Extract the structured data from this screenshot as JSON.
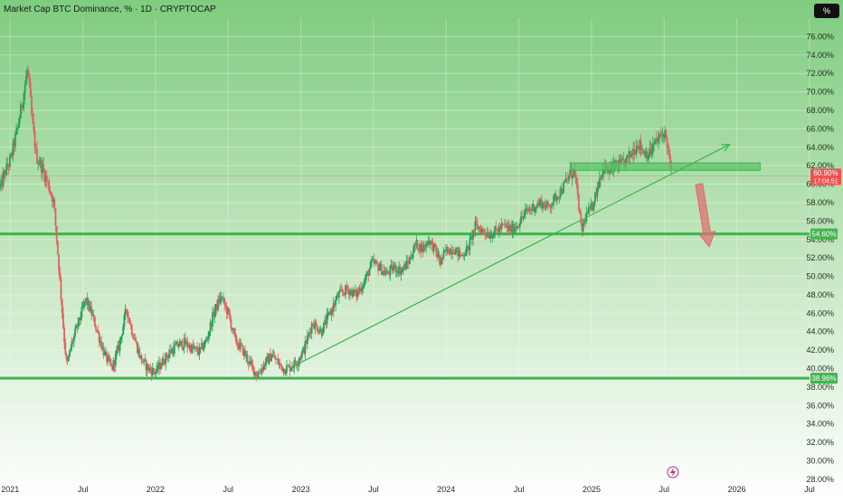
{
  "header": {
    "title": "Market Cap BTC Dominance, % · 1D · CRYPTOCAP",
    "scale_label": "%"
  },
  "icons": {
    "event": "lightning-icon"
  },
  "colors": {
    "bullish": "#22a05a",
    "bearish": "#e06060",
    "level": "#3fb34f",
    "zone": "#5ec26a",
    "arrow": "#e07070",
    "current_label": "#f05050",
    "level_label": "#43b54f"
  },
  "current_price": {
    "value": 60.9,
    "label": "60.90%",
    "countdown": "17:04:51"
  },
  "chart_data": {
    "type": "candlestick",
    "title": "Market Cap BTC Dominance, % · 1D · CRYPTOCAP",
    "yunit": "%",
    "ylim": [
      27.5,
      78.0
    ],
    "xlim": [
      2020.93,
      2026.5
    ],
    "x_ticks": [
      {
        "label": "2021",
        "x": 2021.0
      },
      {
        "label": "Jul",
        "x": 2021.5
      },
      {
        "label": "2022",
        "x": 2022.0
      },
      {
        "label": "Jul",
        "x": 2022.5
      },
      {
        "label": "2023",
        "x": 2023.0
      },
      {
        "label": "Jul",
        "x": 2023.5
      },
      {
        "label": "2024",
        "x": 2024.0
      },
      {
        "label": "Jul",
        "x": 2024.5
      },
      {
        "label": "2025",
        "x": 2025.0
      },
      {
        "label": "Jul",
        "x": 2025.5
      },
      {
        "label": "2026",
        "x": 2026.0
      },
      {
        "label": "Jul",
        "x": 2026.5
      }
    ],
    "y_ticks": [
      28,
      30,
      32,
      34,
      36,
      38,
      40,
      42,
      44,
      46,
      48,
      50,
      52,
      54,
      56,
      58,
      60,
      62,
      64,
      66,
      68,
      70,
      72,
      74,
      76
    ],
    "y_tick_labels": [
      "28.00%",
      "30.00%",
      "32.00%",
      "34.00%",
      "36.00%",
      "38.00%",
      "40.00%",
      "42.00%",
      "44.00%",
      "46.00%",
      "48.00%",
      "50.00%",
      "52.00%",
      "54.00%",
      "56.00%",
      "58.00%",
      "60.00%",
      "62.00%",
      "64.00%",
      "66.00%",
      "68.00%",
      "70.00%",
      "72.00%",
      "74.00%",
      "76.00%"
    ],
    "price_path": [
      [
        2020.93,
        59.6
      ],
      [
        2020.97,
        61.5
      ],
      [
        2021.0,
        62.5
      ],
      [
        2021.05,
        66.0
      ],
      [
        2021.09,
        69.5
      ],
      [
        2021.12,
        72.6
      ],
      [
        2021.15,
        67.0
      ],
      [
        2021.18,
        63.0
      ],
      [
        2021.22,
        61.8
      ],
      [
        2021.26,
        60.0
      ],
      [
        2021.3,
        58.0
      ],
      [
        2021.34,
        50.0
      ],
      [
        2021.37,
        43.5
      ],
      [
        2021.39,
        40.2
      ],
      [
        2021.42,
        42.5
      ],
      [
        2021.47,
        45.0
      ],
      [
        2021.52,
        47.5
      ],
      [
        2021.56,
        46.0
      ],
      [
        2021.61,
        43.5
      ],
      [
        2021.65,
        41.5
      ],
      [
        2021.7,
        40.0
      ],
      [
        2021.75,
        42.5
      ],
      [
        2021.8,
        46.5
      ],
      [
        2021.84,
        44.0
      ],
      [
        2021.9,
        41.0
      ],
      [
        2021.95,
        40.0
      ],
      [
        2022.0,
        39.6
      ],
      [
        2022.05,
        40.8
      ],
      [
        2022.1,
        41.8
      ],
      [
        2022.15,
        42.5
      ],
      [
        2022.2,
        42.8
      ],
      [
        2022.25,
        42.2
      ],
      [
        2022.3,
        41.8
      ],
      [
        2022.35,
        43.0
      ],
      [
        2022.4,
        46.0
      ],
      [
        2022.45,
        47.8
      ],
      [
        2022.5,
        46.0
      ],
      [
        2022.55,
        43.0
      ],
      [
        2022.6,
        42.0
      ],
      [
        2022.65,
        40.5
      ],
      [
        2022.7,
        39.3
      ],
      [
        2022.75,
        40.5
      ],
      [
        2022.8,
        41.5
      ],
      [
        2022.85,
        40.5
      ],
      [
        2022.88,
        40.0
      ],
      [
        2022.92,
        40.1
      ],
      [
        2022.97,
        40.7
      ],
      [
        2023.02,
        42.0
      ],
      [
        2023.08,
        45.0
      ],
      [
        2023.14,
        44.0
      ],
      [
        2023.2,
        46.0
      ],
      [
        2023.26,
        48.0
      ],
      [
        2023.32,
        48.6
      ],
      [
        2023.38,
        48.0
      ],
      [
        2023.44,
        49.5
      ],
      [
        2023.49,
        51.5
      ],
      [
        2023.54,
        51.0
      ],
      [
        2023.59,
        50.2
      ],
      [
        2023.64,
        51.0
      ],
      [
        2023.69,
        50.6
      ],
      [
        2023.74,
        51.5
      ],
      [
        2023.79,
        53.5
      ],
      [
        2023.84,
        53.0
      ],
      [
        2023.88,
        54.0
      ],
      [
        2023.92,
        53.0
      ],
      [
        2023.96,
        51.5
      ],
      [
        2024.0,
        52.8
      ],
      [
        2024.05,
        53.0
      ],
      [
        2024.1,
        52.2
      ],
      [
        2024.15,
        53.0
      ],
      [
        2024.2,
        55.5
      ],
      [
        2024.25,
        55.0
      ],
      [
        2024.3,
        54.5
      ],
      [
        2024.35,
        55.0
      ],
      [
        2024.4,
        55.5
      ],
      [
        2024.45,
        55.0
      ],
      [
        2024.5,
        55.8
      ],
      [
        2024.55,
        57.0
      ],
      [
        2024.6,
        57.5
      ],
      [
        2024.65,
        58.0
      ],
      [
        2024.7,
        57.5
      ],
      [
        2024.75,
        58.5
      ],
      [
        2024.8,
        59.5
      ],
      [
        2024.85,
        61.0
      ],
      [
        2024.88,
        61.5
      ],
      [
        2024.91,
        58.0
      ],
      [
        2024.93,
        54.8
      ],
      [
        2024.96,
        56.5
      ],
      [
        2025.0,
        57.5
      ],
      [
        2025.03,
        59.0
      ],
      [
        2025.06,
        61.0
      ],
      [
        2025.09,
        61.8
      ],
      [
        2025.12,
        61.3
      ],
      [
        2025.16,
        61.9
      ],
      [
        2025.2,
        62.0
      ],
      [
        2025.24,
        62.5
      ],
      [
        2025.28,
        63.5
      ],
      [
        2025.32,
        64.5
      ],
      [
        2025.36,
        63.5
      ],
      [
        2025.4,
        63.3
      ],
      [
        2025.44,
        64.5
      ],
      [
        2025.48,
        65.2
      ],
      [
        2025.5,
        65.7
      ],
      [
        2025.52,
        64.5
      ],
      [
        2025.54,
        62.0
      ],
      [
        2025.55,
        60.9
      ]
    ],
    "annotations": {
      "horizontal_levels": [
        {
          "value": 54.6,
          "label": "54.60%"
        },
        {
          "value": 38.96,
          "label": "38.96%"
        }
      ],
      "zone": {
        "x0": 2024.86,
        "x1": 2026.16,
        "y0": 61.5,
        "y1": 62.3
      },
      "trendline": {
        "x0": 2022.93,
        "y0": 40.1,
        "x1": 2025.95,
        "y1": 64.3
      },
      "projection_arrow": {
        "x0": 2025.74,
        "y0": 60.0,
        "x1": 2025.81,
        "y1": 53.2
      },
      "current_price_line": 60.9,
      "event_marker_x": 2025.56
    }
  }
}
